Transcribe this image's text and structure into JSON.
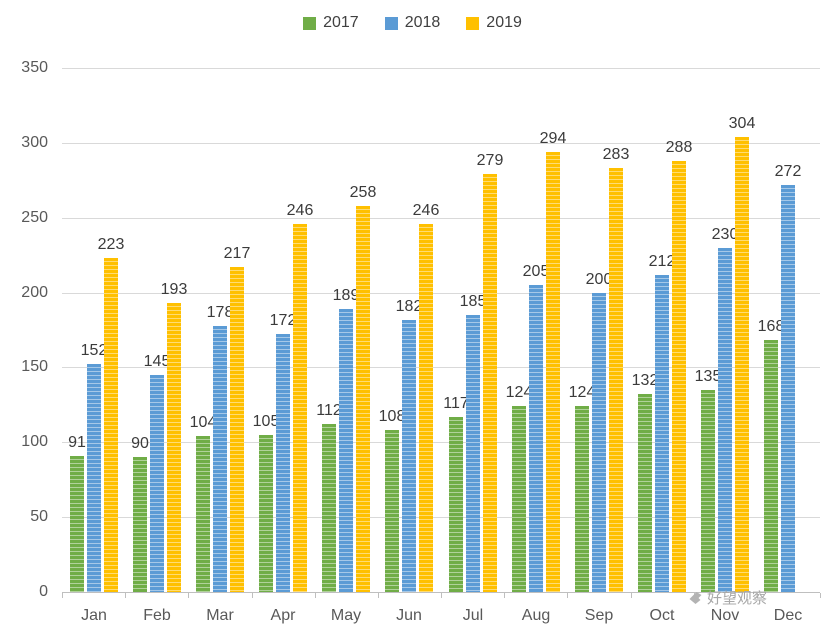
{
  "chart_data": {
    "type": "bar",
    "title": "",
    "xlabel": "",
    "ylabel": "",
    "categories": [
      "Jan",
      "Feb",
      "Mar",
      "Apr",
      "May",
      "Jun",
      "Jul",
      "Aug",
      "Sep",
      "Oct",
      "Nov",
      "Dec"
    ],
    "series": [
      {
        "name": "2017",
        "color": "#70AD47",
        "values": [
          91,
          90,
          104,
          105,
          112,
          108,
          117,
          124,
          124,
          132,
          135,
          168
        ]
      },
      {
        "name": "2018",
        "color": "#5B9BD5",
        "values": [
          152,
          145,
          178,
          172,
          189,
          182,
          185,
          205,
          200,
          212,
          230,
          272
        ]
      },
      {
        "name": "2019",
        "color": "#FFC000",
        "values": [
          223,
          193,
          217,
          246,
          258,
          246,
          279,
          294,
          283,
          288,
          304,
          null
        ]
      }
    ],
    "ylim": [
      0,
      350
    ],
    "ytick_step": 50,
    "grid": true,
    "legend_position": "top",
    "data_labels": true
  },
  "watermark": {
    "text": "好望观察"
  },
  "colors": {
    "grid": "#D9D9D9",
    "axis": "#BFBFBF",
    "tick_label": "#595959",
    "data_label": "#3B3B3B"
  }
}
